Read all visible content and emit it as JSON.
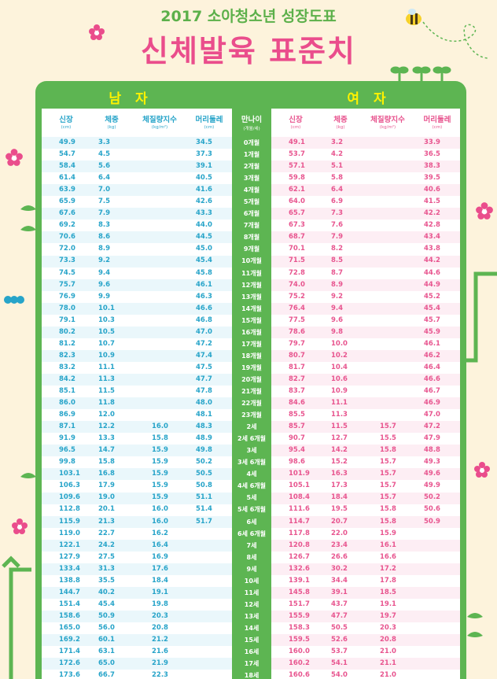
{
  "header": {
    "subtitle": "2017 소아청소년 성장도표",
    "title": "신체발육 표준치"
  },
  "sections": {
    "male": "남 자",
    "female": "여 자"
  },
  "columns": {
    "height": {
      "label": "신장",
      "unit": "(cm)"
    },
    "weight": {
      "label": "체중",
      "unit": "(kg)"
    },
    "bmi": {
      "label": "체질량지수",
      "unit": "(kg/m²)"
    },
    "head": {
      "label": "머리둘레",
      "unit": "(cm)"
    },
    "age": {
      "label": "만나이",
      "unit": "(개월/세)"
    }
  },
  "colors": {
    "green": "#5db552",
    "male": "#27a4c9",
    "female": "#e8558f",
    "title_pink": "#ea4d8c",
    "background": "#fdf3dc"
  },
  "rows": [
    {
      "age": "0개월",
      "m": [
        "49.9",
        "3.3",
        "",
        "34.5"
      ],
      "f": [
        "49.1",
        "3.2",
        "",
        "33.9"
      ]
    },
    {
      "age": "1개월",
      "m": [
        "54.7",
        "4.5",
        "",
        "37.3"
      ],
      "f": [
        "53.7",
        "4.2",
        "",
        "36.5"
      ]
    },
    {
      "age": "2개월",
      "m": [
        "58.4",
        "5.6",
        "",
        "39.1"
      ],
      "f": [
        "57.1",
        "5.1",
        "",
        "38.3"
      ]
    },
    {
      "age": "3개월",
      "m": [
        "61.4",
        "6.4",
        "",
        "40.5"
      ],
      "f": [
        "59.8",
        "5.8",
        "",
        "39.5"
      ]
    },
    {
      "age": "4개월",
      "m": [
        "63.9",
        "7.0",
        "",
        "41.6"
      ],
      "f": [
        "62.1",
        "6.4",
        "",
        "40.6"
      ]
    },
    {
      "age": "5개월",
      "m": [
        "65.9",
        "7.5",
        "",
        "42.6"
      ],
      "f": [
        "64.0",
        "6.9",
        "",
        "41.5"
      ]
    },
    {
      "age": "6개월",
      "m": [
        "67.6",
        "7.9",
        "",
        "43.3"
      ],
      "f": [
        "65.7",
        "7.3",
        "",
        "42.2"
      ]
    },
    {
      "age": "7개월",
      "m": [
        "69.2",
        "8.3",
        "",
        "44.0"
      ],
      "f": [
        "67.3",
        "7.6",
        "",
        "42.8"
      ]
    },
    {
      "age": "8개월",
      "m": [
        "70.6",
        "8.6",
        "",
        "44.5"
      ],
      "f": [
        "68.7",
        "7.9",
        "",
        "43.4"
      ]
    },
    {
      "age": "9개월",
      "m": [
        "72.0",
        "8.9",
        "",
        "45.0"
      ],
      "f": [
        "70.1",
        "8.2",
        "",
        "43.8"
      ]
    },
    {
      "age": "10개월",
      "m": [
        "73.3",
        "9.2",
        "",
        "45.4"
      ],
      "f": [
        "71.5",
        "8.5",
        "",
        "44.2"
      ]
    },
    {
      "age": "11개월",
      "m": [
        "74.5",
        "9.4",
        "",
        "45.8"
      ],
      "f": [
        "72.8",
        "8.7",
        "",
        "44.6"
      ]
    },
    {
      "age": "12개월",
      "m": [
        "75.7",
        "9.6",
        "",
        "46.1"
      ],
      "f": [
        "74.0",
        "8.9",
        "",
        "44.9"
      ]
    },
    {
      "age": "13개월",
      "m": [
        "76.9",
        "9.9",
        "",
        "46.3"
      ],
      "f": [
        "75.2",
        "9.2",
        "",
        "45.2"
      ]
    },
    {
      "age": "14개월",
      "m": [
        "78.0",
        "10.1",
        "",
        "46.6"
      ],
      "f": [
        "76.4",
        "9.4",
        "",
        "45.4"
      ]
    },
    {
      "age": "15개월",
      "m": [
        "79.1",
        "10.3",
        "",
        "46.8"
      ],
      "f": [
        "77.5",
        "9.6",
        "",
        "45.7"
      ]
    },
    {
      "age": "16개월",
      "m": [
        "80.2",
        "10.5",
        "",
        "47.0"
      ],
      "f": [
        "78.6",
        "9.8",
        "",
        "45.9"
      ]
    },
    {
      "age": "17개월",
      "m": [
        "81.2",
        "10.7",
        "",
        "47.2"
      ],
      "f": [
        "79.7",
        "10.0",
        "",
        "46.1"
      ]
    },
    {
      "age": "18개월",
      "m": [
        "82.3",
        "10.9",
        "",
        "47.4"
      ],
      "f": [
        "80.7",
        "10.2",
        "",
        "46.2"
      ]
    },
    {
      "age": "19개월",
      "m": [
        "83.2",
        "11.1",
        "",
        "47.5"
      ],
      "f": [
        "81.7",
        "10.4",
        "",
        "46.4"
      ]
    },
    {
      "age": "20개월",
      "m": [
        "84.2",
        "11.3",
        "",
        "47.7"
      ],
      "f": [
        "82.7",
        "10.6",
        "",
        "46.6"
      ]
    },
    {
      "age": "21개월",
      "m": [
        "85.1",
        "11.5",
        "",
        "47.8"
      ],
      "f": [
        "83.7",
        "10.9",
        "",
        "46.7"
      ]
    },
    {
      "age": "22개월",
      "m": [
        "86.0",
        "11.8",
        "",
        "48.0"
      ],
      "f": [
        "84.6",
        "11.1",
        "",
        "46.9"
      ]
    },
    {
      "age": "23개월",
      "m": [
        "86.9",
        "12.0",
        "",
        "48.1"
      ],
      "f": [
        "85.5",
        "11.3",
        "",
        "47.0"
      ]
    },
    {
      "age": "2세",
      "m": [
        "87.1",
        "12.2",
        "16.0",
        "48.3"
      ],
      "f": [
        "85.7",
        "11.5",
        "15.7",
        "47.2"
      ]
    },
    {
      "age": "2세 6개월",
      "m": [
        "91.9",
        "13.3",
        "15.8",
        "48.9"
      ],
      "f": [
        "90.7",
        "12.7",
        "15.5",
        "47.9"
      ]
    },
    {
      "age": "3세",
      "m": [
        "96.5",
        "14.7",
        "15.9",
        "49.8"
      ],
      "f": [
        "95.4",
        "14.2",
        "15.8",
        "48.8"
      ]
    },
    {
      "age": "3세 6개월",
      "m": [
        "99.8",
        "15.8",
        "15.9",
        "50.2"
      ],
      "f": [
        "98.6",
        "15.2",
        "15.7",
        "49.3"
      ]
    },
    {
      "age": "4세",
      "m": [
        "103.1",
        "16.8",
        "15.9",
        "50.5"
      ],
      "f": [
        "101.9",
        "16.3",
        "15.7",
        "49.6"
      ]
    },
    {
      "age": "4세 6개월",
      "m": [
        "106.3",
        "17.9",
        "15.9",
        "50.8"
      ],
      "f": [
        "105.1",
        "17.3",
        "15.7",
        "49.9"
      ]
    },
    {
      "age": "5세",
      "m": [
        "109.6",
        "19.0",
        "15.9",
        "51.1"
      ],
      "f": [
        "108.4",
        "18.4",
        "15.7",
        "50.2"
      ]
    },
    {
      "age": "5세 6개월",
      "m": [
        "112.8",
        "20.1",
        "16.0",
        "51.4"
      ],
      "f": [
        "111.6",
        "19.5",
        "15.8",
        "50.6"
      ]
    },
    {
      "age": "6세",
      "m": [
        "115.9",
        "21.3",
        "16.0",
        "51.7"
      ],
      "f": [
        "114.7",
        "20.7",
        "15.8",
        "50.9"
      ]
    },
    {
      "age": "6세 6개월",
      "m": [
        "119.0",
        "22.7",
        "16.2",
        ""
      ],
      "f": [
        "117.8",
        "22.0",
        "15.9",
        ""
      ]
    },
    {
      "age": "7세",
      "m": [
        "122.1",
        "24.2",
        "16.4",
        ""
      ],
      "f": [
        "120.8",
        "23.4",
        "16.1",
        ""
      ]
    },
    {
      "age": "8세",
      "m": [
        "127.9",
        "27.5",
        "16.9",
        ""
      ],
      "f": [
        "126.7",
        "26.6",
        "16.6",
        ""
      ]
    },
    {
      "age": "9세",
      "m": [
        "133.4",
        "31.3",
        "17.6",
        ""
      ],
      "f": [
        "132.6",
        "30.2",
        "17.2",
        ""
      ]
    },
    {
      "age": "10세",
      "m": [
        "138.8",
        "35.5",
        "18.4",
        ""
      ],
      "f": [
        "139.1",
        "34.4",
        "17.8",
        ""
      ]
    },
    {
      "age": "11세",
      "m": [
        "144.7",
        "40.2",
        "19.1",
        ""
      ],
      "f": [
        "145.8",
        "39.1",
        "18.5",
        ""
      ]
    },
    {
      "age": "12세",
      "m": [
        "151.4",
        "45.4",
        "19.8",
        ""
      ],
      "f": [
        "151.7",
        "43.7",
        "19.1",
        ""
      ]
    },
    {
      "age": "13세",
      "m": [
        "158.6",
        "50.9",
        "20.3",
        ""
      ],
      "f": [
        "155.9",
        "47.7",
        "19.7",
        ""
      ]
    },
    {
      "age": "14세",
      "m": [
        "165.0",
        "56.0",
        "20.8",
        ""
      ],
      "f": [
        "158.3",
        "50.5",
        "20.3",
        ""
      ]
    },
    {
      "age": "15세",
      "m": [
        "169.2",
        "60.1",
        "21.2",
        ""
      ],
      "f": [
        "159.5",
        "52.6",
        "20.8",
        ""
      ]
    },
    {
      "age": "16세",
      "m": [
        "171.4",
        "63.1",
        "21.6",
        ""
      ],
      "f": [
        "160.0",
        "53.7",
        "21.0",
        ""
      ]
    },
    {
      "age": "17세",
      "m": [
        "172.6",
        "65.0",
        "21.9",
        ""
      ],
      "f": [
        "160.2",
        "54.1",
        "21.1",
        ""
      ]
    },
    {
      "age": "18세",
      "m": [
        "173.6",
        "66.7",
        "22.3",
        ""
      ],
      "f": [
        "160.6",
        "54.0",
        "21.0",
        ""
      ]
    }
  ]
}
